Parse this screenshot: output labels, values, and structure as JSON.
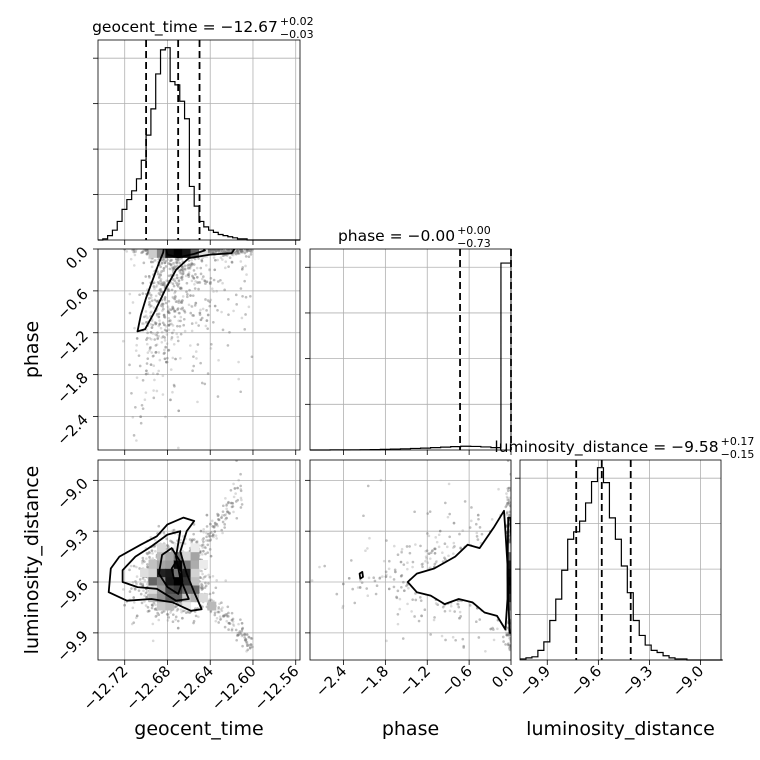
{
  "chart_data": {
    "type": "corner",
    "parameters": [
      "geocent_time",
      "phase",
      "luminosity_distance"
    ],
    "titles": [
      {
        "param": "geocent_time",
        "label": "geocent_time = −12.67",
        "upper": "+0.02",
        "lower": "−0.03",
        "median": -12.67,
        "err_plus": 0.02,
        "err_minus": 0.03
      },
      {
        "param": "phase",
        "label": "phase = −0.00",
        "upper": "+0.00",
        "lower": "−0.73",
        "median": -0.0,
        "err_plus": 0.0,
        "err_minus": 0.73
      },
      {
        "param": "luminosity_distance",
        "label": "luminosity_distance = −9.58",
        "upper": "+0.17",
        "lower": "−0.15",
        "median": -9.58,
        "err_plus": 0.17,
        "err_minus": 0.15
      }
    ],
    "axes": {
      "geocent_time": {
        "range": [
          -12.745,
          -12.556
        ],
        "ticks": [
          -12.72,
          -12.68,
          -12.64,
          -12.6,
          -12.56
        ],
        "tick_labels": [
          "−12.72",
          "−12.68",
          "−12.64",
          "−12.60",
          "−12.56"
        ],
        "xlabel": "geocent_time"
      },
      "phase": {
        "range": [
          -2.88,
          0.0
        ],
        "ticks": [
          -2.4,
          -1.8,
          -1.2,
          -0.6,
          0.0
        ],
        "tick_labels": [
          "−2.4",
          "−1.8",
          "−1.2",
          "−0.6",
          "0.0"
        ],
        "xlabel": "phase",
        "ylabel": "phase"
      },
      "luminosity_distance": {
        "range": [
          -10.06,
          -8.88
        ],
        "ticks": [
          -9.9,
          -9.6,
          -9.3,
          -9.0
        ],
        "tick_labels": [
          "−9.9",
          "−9.6",
          "−9.3",
          "−9.0"
        ],
        "xlabel": "luminosity_distance",
        "ylabel": "luminosity_distance"
      }
    },
    "histograms": {
      "geocent_time": {
        "bin_edges": [
          -12.745,
          -12.7405,
          -12.736,
          -12.7315,
          -12.727,
          -12.7225,
          -12.718,
          -12.7135,
          -12.709,
          -12.7045,
          -12.7,
          -12.6955,
          -12.691,
          -12.6865,
          -12.682,
          -12.6775,
          -12.673,
          -12.6685,
          -12.664,
          -12.6595,
          -12.655,
          -12.6505,
          -12.646,
          -12.6415,
          -12.637,
          -12.6325,
          -12.628,
          -12.6235,
          -12.619,
          -12.6145,
          -12.61,
          -12.6055,
          -12.601,
          -12.5965,
          -12.592,
          -12.5875,
          -12.583,
          -12.5785,
          -12.574,
          -12.5695,
          -12.565,
          -12.5605,
          -12.556
        ],
        "counts": [
          0,
          1,
          4,
          9,
          17,
          28,
          37,
          45,
          56,
          73,
          96,
          120,
          152,
          174,
          176,
          145,
          142,
          127,
          111,
          49,
          31,
          17,
          12,
          9,
          7,
          5,
          4,
          3,
          2,
          1,
          1,
          0,
          0,
          0,
          0,
          0,
          0,
          0,
          0,
          0,
          0,
          0
        ],
        "quantiles": [
          -12.7,
          -12.67,
          -12.65
        ]
      },
      "phase": {
        "bin_edges": [
          -2.88,
          -2.736,
          -2.592,
          -2.448,
          -2.304,
          -2.16,
          -2.016,
          -1.872,
          -1.728,
          -1.584,
          -1.44,
          -1.296,
          -1.152,
          -1.008,
          -0.864,
          -0.72,
          -0.576,
          -0.432,
          -0.288,
          -0.144,
          0.0
        ],
        "counts": [
          0,
          0,
          1,
          1,
          2,
          3,
          4,
          6,
          9,
          12,
          16,
          19,
          24,
          29,
          34,
          38,
          36,
          31,
          24,
          1900
        ],
        "quantiles": [
          -0.73,
          -0.0
        ]
      },
      "luminosity_distance": {
        "bin_edges": [
          -10.06,
          -10.025,
          -9.99,
          -9.955,
          -9.92,
          -9.885,
          -9.85,
          -9.815,
          -9.78,
          -9.745,
          -9.71,
          -9.675,
          -9.64,
          -9.605,
          -9.57,
          -9.535,
          -9.5,
          -9.465,
          -9.43,
          -9.395,
          -9.36,
          -9.325,
          -9.29,
          -9.255,
          -9.22,
          -9.185,
          -9.15,
          -9.115,
          -9.08,
          -9.045,
          -9.01,
          -8.975,
          -8.94,
          -8.905,
          -8.87
        ],
        "counts": [
          1,
          2,
          3,
          9,
          17,
          37,
          57,
          84,
          113,
          120,
          130,
          147,
          167,
          180,
          166,
          133,
          113,
          88,
          63,
          37,
          23,
          14,
          9,
          7,
          4,
          2,
          1,
          1,
          0,
          0,
          0,
          0,
          0,
          0
        ],
        "quantiles": [
          -9.73,
          -9.58,
          -9.41
        ]
      }
    },
    "grid": true
  }
}
